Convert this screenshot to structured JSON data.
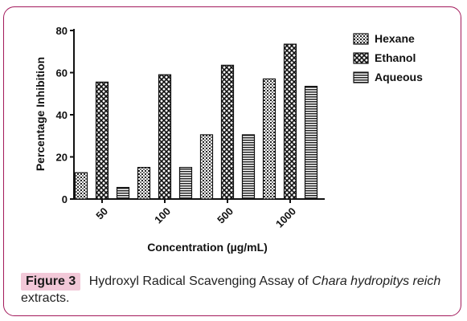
{
  "figure": {
    "label": "Figure 3",
    "caption_pre": "Hydroxyl Radical Scavenging Assay of ",
    "caption_species": "Chara hydropitys reich",
    "caption_post": " extracts.",
    "frame_color": "#a3195b",
    "label_bg": "#f2c8d8"
  },
  "chart_data": {
    "type": "bar",
    "title": "",
    "xlabel": "Concentration (µg/mL)",
    "ylabel": "Percentage Inhibition",
    "ylim": [
      0,
      80
    ],
    "yticks": [
      0,
      20,
      40,
      60,
      80
    ],
    "categories": [
      "50",
      "100",
      "500",
      "1000"
    ],
    "legend_position": "top-right",
    "grid": false,
    "series": [
      {
        "name": "Hexane",
        "pattern": "grid",
        "values": [
          12.5,
          15,
          30.5,
          57
        ]
      },
      {
        "name": "Ethanol",
        "pattern": "checker",
        "values": [
          55.5,
          59,
          63.5,
          73.5
        ]
      },
      {
        "name": "Aqueous",
        "pattern": "hlines",
        "values": [
          5.5,
          15,
          30.5,
          53.5
        ]
      }
    ]
  }
}
